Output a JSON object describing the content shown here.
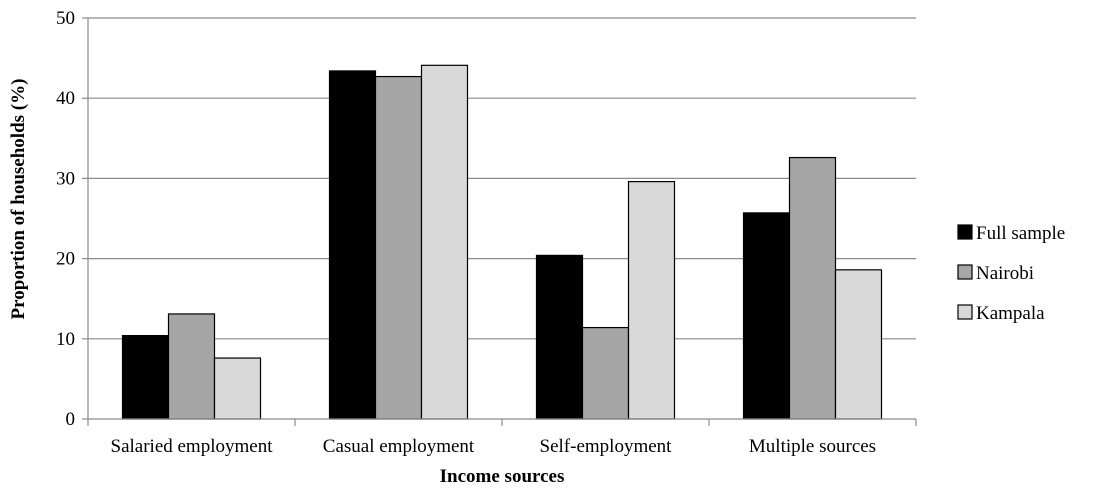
{
  "chart_data": {
    "type": "bar",
    "title": "",
    "xlabel": "Income sources",
    "ylabel": "Proportion of households (%)",
    "ylim": [
      0,
      50
    ],
    "yticks": [
      0,
      10,
      20,
      30,
      40,
      50
    ],
    "grid": true,
    "legend_position": "right",
    "categories": [
      "Salaried employment",
      "Casual employment",
      "Self-employment",
      "Multiple sources"
    ],
    "series": [
      {
        "name": "Full sample",
        "color": "#000000",
        "values": [
          10.4,
          43.4,
          20.4,
          25.7
        ]
      },
      {
        "name": "Nairobi",
        "color": "#a6a6a6",
        "values": [
          13.1,
          42.7,
          11.4,
          32.6
        ]
      },
      {
        "name": "Kampala",
        "color": "#d9d9d9",
        "values": [
          7.6,
          44.1,
          29.6,
          18.6
        ]
      }
    ]
  }
}
